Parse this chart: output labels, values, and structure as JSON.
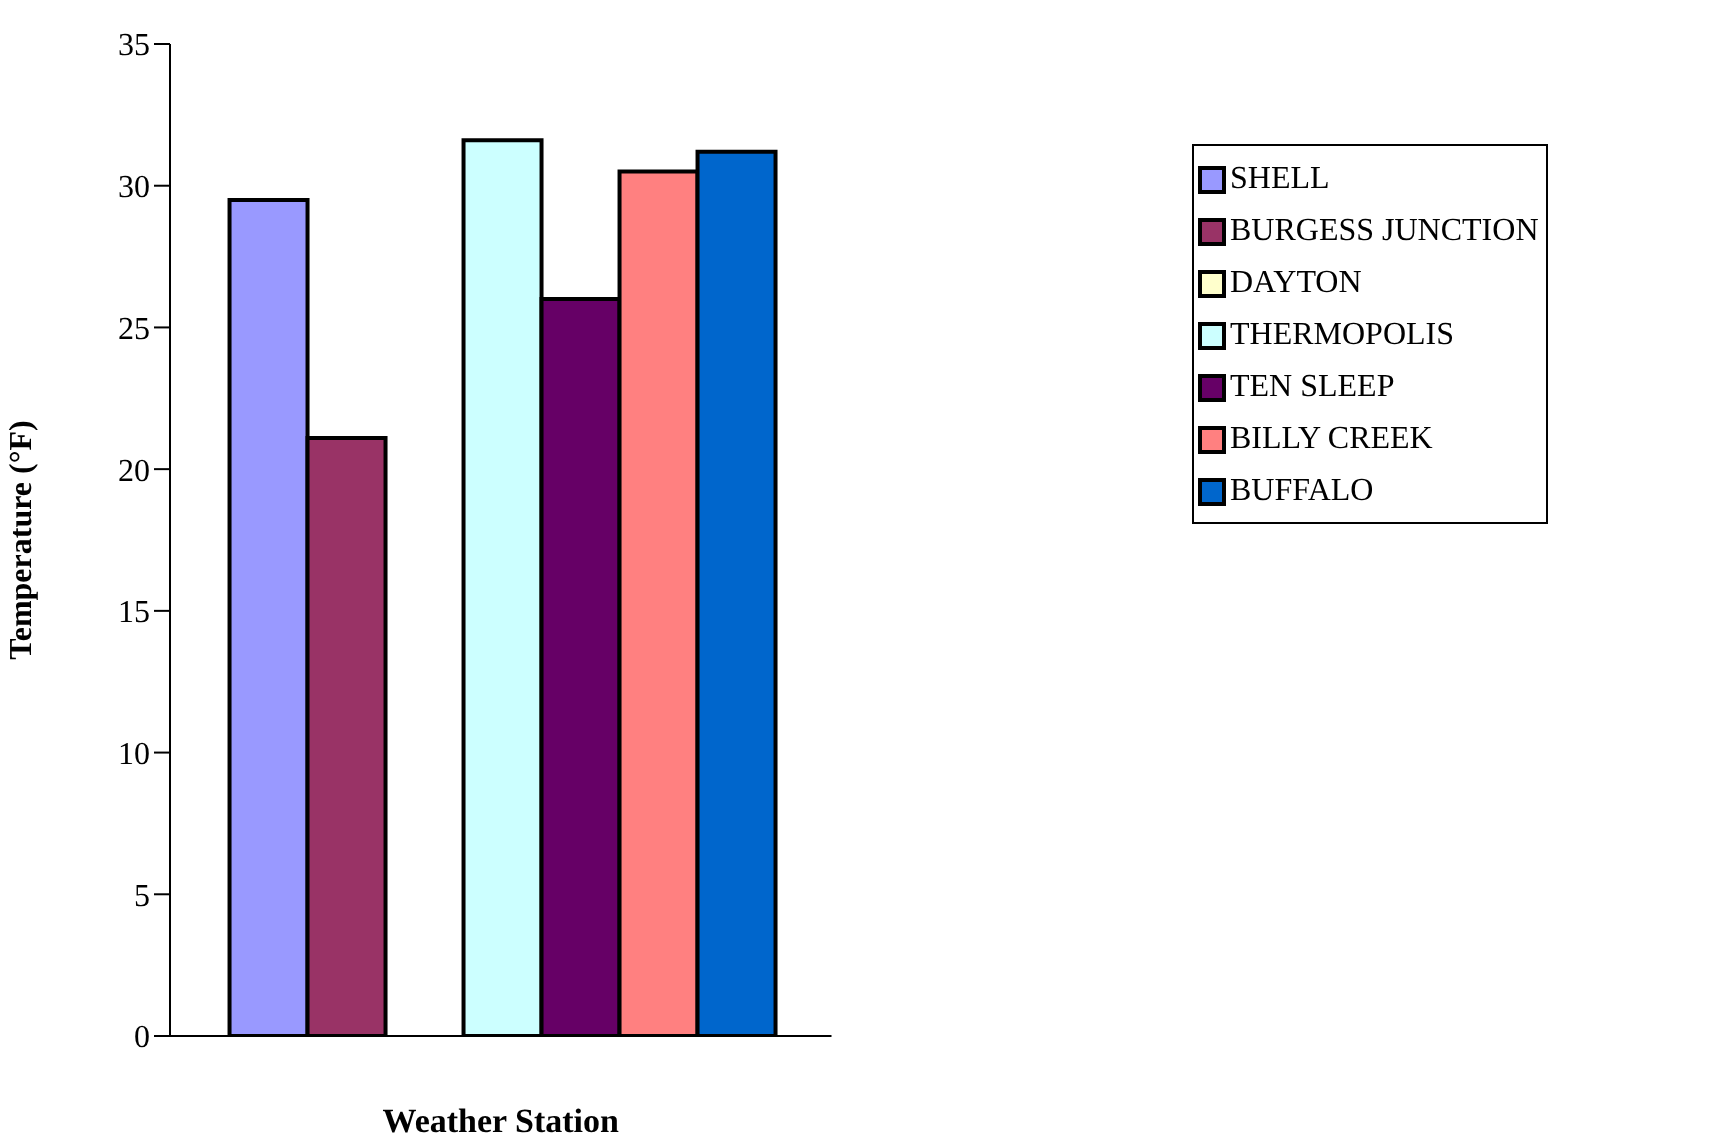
{
  "chart_data": {
    "type": "bar",
    "xlabel": "Weather Station",
    "ylabel": "Temperature (°F)",
    "categories": [
      null
    ],
    "series": [
      {
        "name": "SHELL",
        "color": "#9999ff",
        "values": [
          29.5
        ]
      },
      {
        "name": "BURGESS JUNCTION",
        "color": "#993366",
        "values": [
          21.1
        ]
      },
      {
        "name": "DAYTON",
        "color": "#ffffcc",
        "values": [
          null
        ]
      },
      {
        "name": "THERMOPOLIS",
        "color": "#ccffff",
        "values": [
          31.6
        ]
      },
      {
        "name": "TEN SLEEP",
        "color": "#660066",
        "values": [
          26.0
        ]
      },
      {
        "name": "BILLY CREEK",
        "color": "#ff8080",
        "values": [
          30.5
        ]
      },
      {
        "name": "BUFFALO",
        "color": "#0066cc",
        "values": [
          31.2
        ]
      }
    ],
    "ylim": [
      0,
      35
    ],
    "yticks": [
      0,
      5,
      10,
      15,
      20,
      25,
      30,
      35
    ],
    "grid": false,
    "legend": "right"
  }
}
